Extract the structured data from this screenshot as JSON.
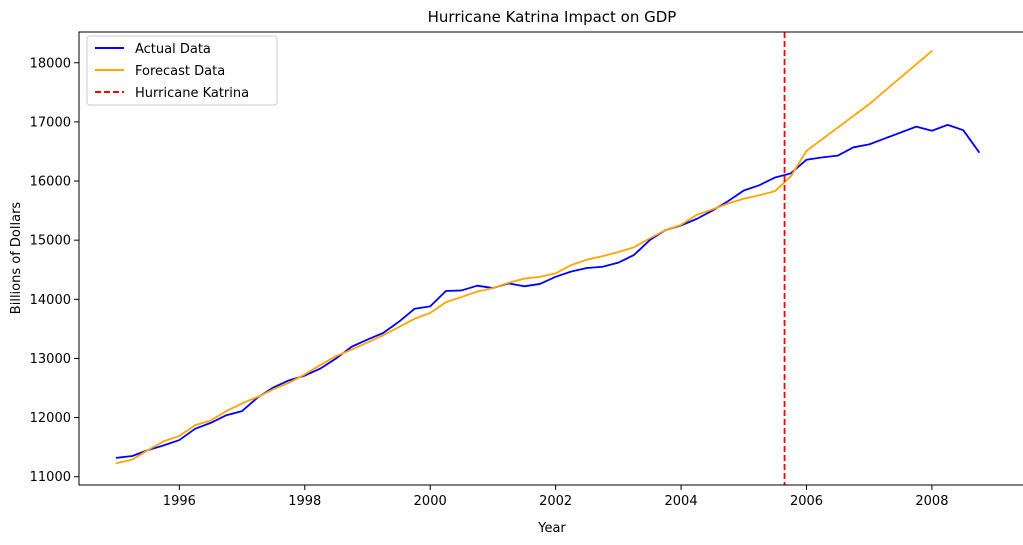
{
  "chart_data": {
    "type": "line",
    "title": "Hurricane Katrina Impact on GDP",
    "xlabel": "Year",
    "ylabel": "Billions of Dollars",
    "xlim": [
      1994.4,
      2009.5
    ],
    "ylim": [
      10860,
      18520
    ],
    "xticks": [
      1996,
      1998,
      2000,
      2002,
      2004,
      2006,
      2008
    ],
    "xtick_labels": [
      "1996",
      "1998",
      "2000",
      "2002",
      "2004",
      "2006",
      "2008"
    ],
    "yticks": [
      11000,
      12000,
      13000,
      14000,
      15000,
      16000,
      17000,
      18000
    ],
    "ytick_labels": [
      "11000",
      "12000",
      "13000",
      "14000",
      "15000",
      "16000",
      "17000",
      "18000"
    ],
    "grid": false,
    "legend_position": "top-left",
    "series": [
      {
        "name": "Actual Data",
        "color": "#0000ff",
        "x": [
          1995.0,
          1995.25,
          1995.5,
          1995.75,
          1996.0,
          1996.25,
          1996.5,
          1996.75,
          1997.0,
          1997.25,
          1997.5,
          1997.75,
          1998.0,
          1998.25,
          1998.5,
          1998.75,
          1999.0,
          1999.25,
          1999.5,
          1999.75,
          2000.0,
          2000.25,
          2000.5,
          2000.75,
          2001.0,
          2001.25,
          2001.5,
          2001.75,
          2002.0,
          2002.25,
          2002.5,
          2002.75,
          2003.0,
          2003.25,
          2003.5,
          2003.75,
          2004.0,
          2004.25,
          2004.5,
          2004.75,
          2005.0,
          2005.25,
          2005.5,
          2005.75,
          2006.0,
          2006.25,
          2006.5,
          2006.75,
          2007.0,
          2007.25,
          2007.5,
          2007.75,
          2008.0,
          2008.25,
          2008.5,
          2008.75
        ],
        "y": [
          11320,
          11350,
          11450,
          11530,
          11620,
          11810,
          11910,
          12040,
          12110,
          12340,
          12510,
          12630,
          12710,
          12830,
          13000,
          13200,
          13320,
          13430,
          13620,
          13840,
          13880,
          14140,
          14150,
          14230,
          14190,
          14270,
          14220,
          14260,
          14380,
          14470,
          14530,
          14550,
          14620,
          14750,
          15000,
          15170,
          15250,
          15360,
          15500,
          15660,
          15840,
          15930,
          16060,
          16130,
          16360,
          16400,
          16430,
          16570,
          16620,
          16720,
          16820,
          16920,
          16850,
          16950,
          16860,
          16490
        ]
      },
      {
        "name": "Forecast Data",
        "color": "#ffa500",
        "x": [
          1995.0,
          1995.25,
          1995.5,
          1995.75,
          1996.0,
          1996.25,
          1996.5,
          1996.75,
          1997.0,
          1997.25,
          1997.5,
          1997.75,
          1998.0,
          1998.25,
          1998.5,
          1998.75,
          1999.0,
          1999.25,
          1999.5,
          1999.75,
          2000.0,
          2000.25,
          2000.5,
          2000.75,
          2001.0,
          2001.25,
          2001.5,
          2001.75,
          2002.0,
          2002.25,
          2002.5,
          2002.75,
          2003.0,
          2003.25,
          2003.5,
          2003.75,
          2004.0,
          2004.25,
          2004.5,
          2004.75,
          2005.0,
          2005.25,
          2005.5,
          2005.75,
          2006.0,
          2007.0,
          2008.0
        ],
        "y": [
          11230,
          11290,
          11450,
          11600,
          11690,
          11870,
          11950,
          12110,
          12240,
          12350,
          12480,
          12590,
          12730,
          12890,
          13040,
          13150,
          13270,
          13390,
          13530,
          13670,
          13770,
          13950,
          14040,
          14130,
          14190,
          14280,
          14350,
          14380,
          14440,
          14580,
          14670,
          14730,
          14800,
          14880,
          15030,
          15170,
          15260,
          15430,
          15520,
          15620,
          15700,
          15760,
          15830,
          16080,
          16510,
          17300,
          18200
        ]
      }
    ],
    "vlines": [
      {
        "name": "Hurricane Katrina",
        "x": 2005.65,
        "color": "#ff0000",
        "style": "dashed"
      }
    ]
  }
}
